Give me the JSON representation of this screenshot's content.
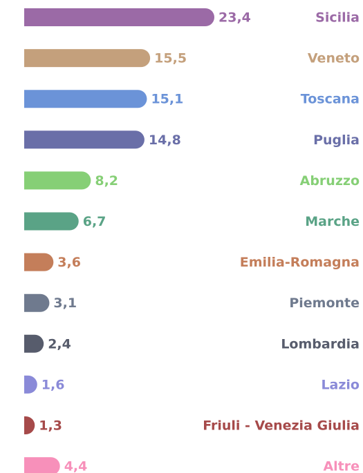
{
  "chart_data": {
    "type": "bar",
    "orientation": "horizontal",
    "categories": [
      "Sicilia",
      "Veneto",
      "Toscana",
      "Puglia",
      "Abruzzo",
      "Marche",
      "Emilia-Romagna",
      "Piemonte",
      "Lombardia",
      "Lazio",
      "Friuli - Venezia Giulia",
      "Altre"
    ],
    "values": [
      23.4,
      15.5,
      15.1,
      14.8,
      8.2,
      6.7,
      3.6,
      3.1,
      2.4,
      1.6,
      1.3,
      4.4
    ],
    "value_labels": [
      "23,4",
      "15,5",
      "15,1",
      "14,8",
      "8,2",
      "6,7",
      "3,6",
      "3,1",
      "2,4",
      "1,6",
      "1,3",
      "4,4"
    ],
    "colors": [
      "#9b6aa6",
      "#c4a07c",
      "#6b93d8",
      "#6a6fa8",
      "#86cf76",
      "#5aa386",
      "#c47e5a",
      "#6f7a8e",
      "#575c6c",
      "#8a8ad8",
      "#a64a4a",
      "#f790ba"
    ]
  }
}
